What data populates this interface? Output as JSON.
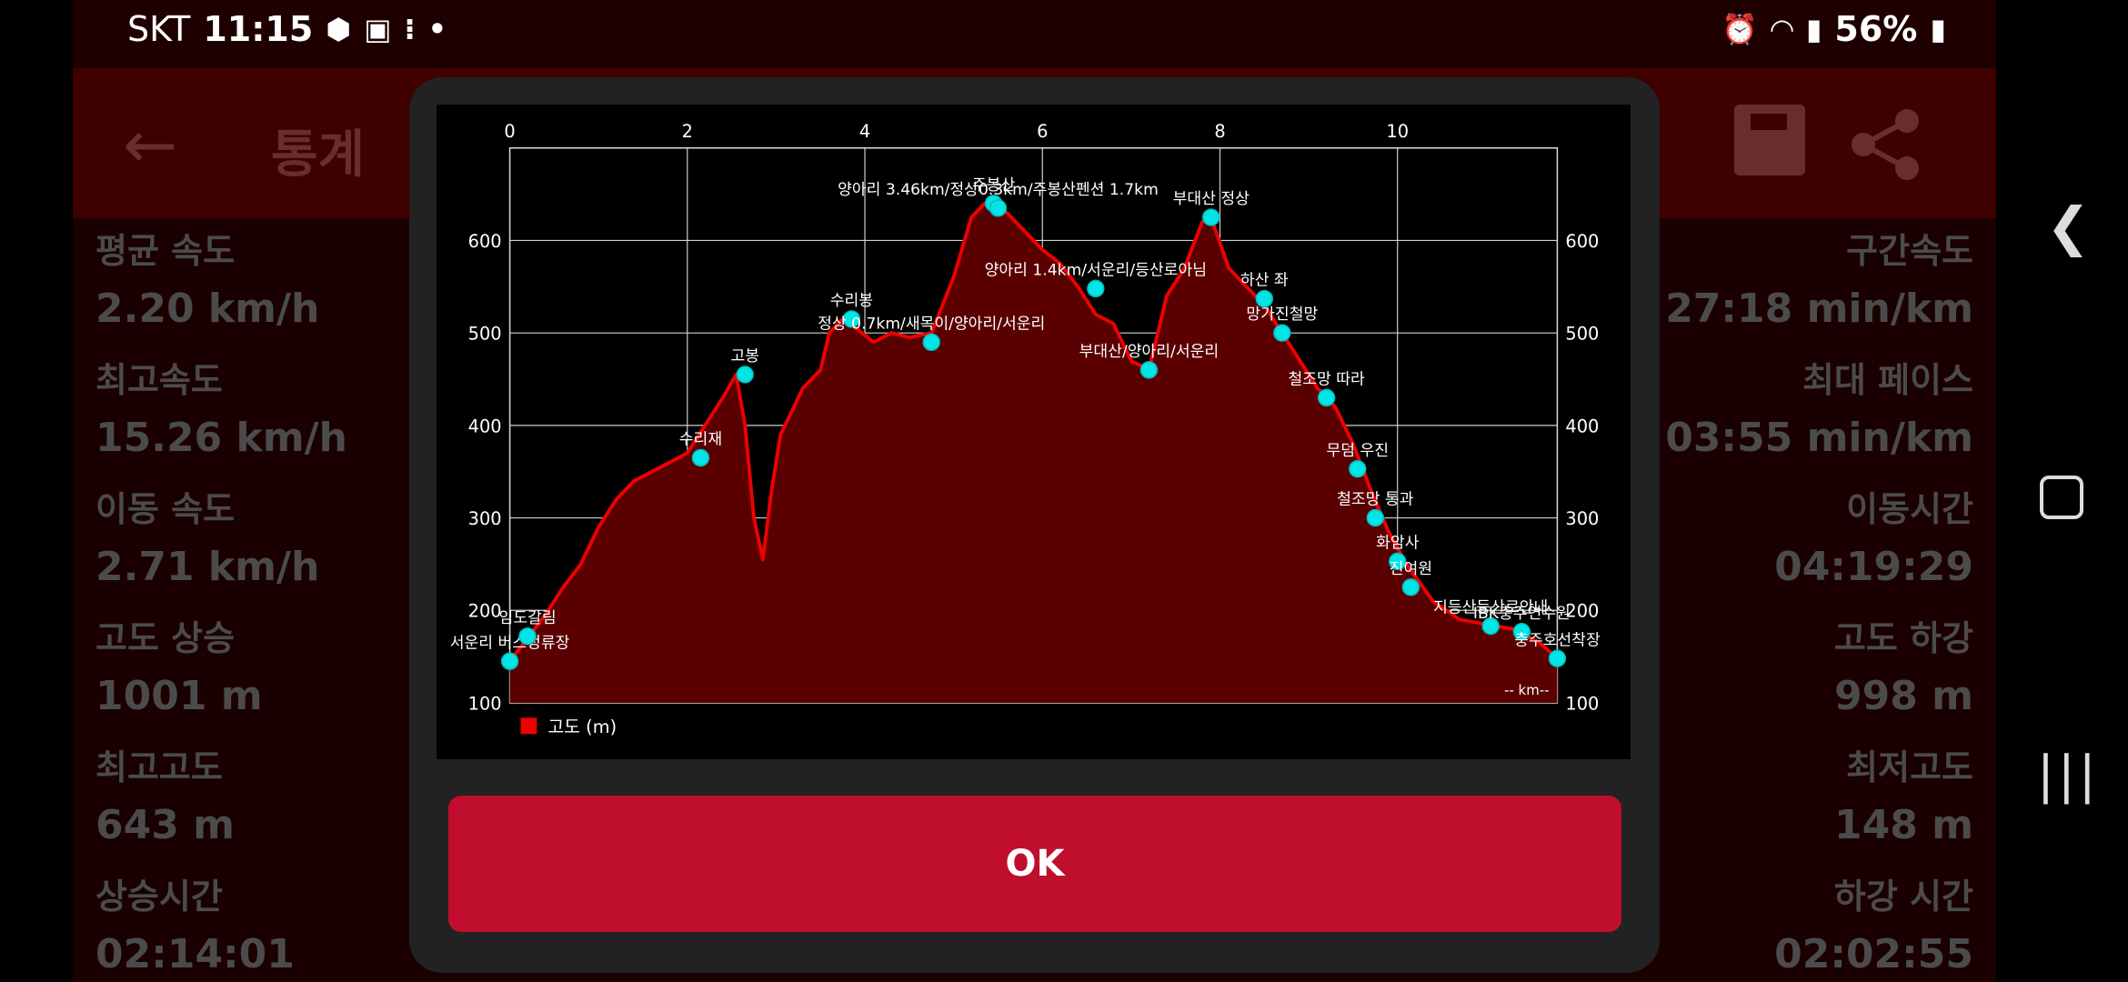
{
  "status_bar": {
    "carrier": "SKT",
    "time": "11:15",
    "battery": "56%",
    "icons": [
      "app-icon",
      "image-icon",
      "steps-icon",
      "dot-icon",
      "alarm-icon",
      "wifi-icon",
      "signal-icon",
      "battery-icon"
    ]
  },
  "app_bar": {
    "title": "통계"
  },
  "stats_left": [
    {
      "label": "평균 속도",
      "value": "2.20 km/h"
    },
    {
      "label": "최고속도",
      "value": "15.26 km/h"
    },
    {
      "label": "이동 속도",
      "value": "2.71 km/h"
    },
    {
      "label": "고도 상승",
      "value": "1001 m"
    },
    {
      "label": "최고고도",
      "value": "643 m"
    },
    {
      "label": "상승시간",
      "value": "02:14:01"
    }
  ],
  "stats_right": [
    {
      "label": "구간속도",
      "value": "27:18 min/km"
    },
    {
      "label": "최대 페이스",
      "value": "03:55 min/km"
    },
    {
      "label": "이동시간",
      "value": "04:19:29"
    },
    {
      "label": "고도 하강",
      "value": "998 m"
    },
    {
      "label": "최저고도",
      "value": "148 m"
    },
    {
      "label": "하강 시간",
      "value": "02:02:55"
    }
  ],
  "dialog": {
    "ok_label": "OK"
  },
  "chart_data": {
    "type": "area",
    "legend": "고도 (m)",
    "legend_position": "bottom-left",
    "x_unit_label": "-- km--",
    "grid": true,
    "xlim": [
      0,
      11.8
    ],
    "ylim": [
      100,
      700
    ],
    "x_ticks": [
      0,
      2,
      4,
      6,
      8,
      10
    ],
    "y_ticks": [
      100,
      200,
      300,
      400,
      500,
      600
    ],
    "series": [
      {
        "color": "#ee0000",
        "x": [
          0,
          0.2,
          0.4,
          0.6,
          0.8,
          1.0,
          1.2,
          1.4,
          1.6,
          1.8,
          2.0,
          2.2,
          2.4,
          2.55,
          2.65,
          2.75,
          2.85,
          2.95,
          3.05,
          3.15,
          3.3,
          3.5,
          3.6,
          3.75,
          3.9,
          4.1,
          4.3,
          4.5,
          4.75,
          5.0,
          5.2,
          5.35,
          5.45,
          5.6,
          5.8,
          6.0,
          6.2,
          6.4,
          6.6,
          6.8,
          7.0,
          7.2,
          7.4,
          7.6,
          7.8,
          7.9,
          8.1,
          8.3,
          8.5,
          8.7,
          8.9,
          9.1,
          9.3,
          9.5,
          9.7,
          9.9,
          10.1,
          10.4,
          10.7,
          11.0,
          11.3,
          11.6,
          11.8
        ],
        "y": [
          145,
          170,
          195,
          225,
          250,
          290,
          320,
          340,
          350,
          360,
          370,
          400,
          430,
          455,
          400,
          300,
          255,
          330,
          390,
          410,
          440,
          460,
          500,
          515,
          505,
          490,
          500,
          495,
          500,
          560,
          625,
          640,
          635,
          630,
          610,
          590,
          575,
          550,
          520,
          510,
          470,
          460,
          540,
          570,
          620,
          625,
          570,
          550,
          530,
          500,
          470,
          440,
          420,
          380,
          330,
          285,
          250,
          210,
          190,
          185,
          180,
          165,
          148
        ]
      }
    ],
    "waypoints": [
      {
        "name": "서운리 버스정류장",
        "x": 0,
        "y": 145
      },
      {
        "name": "임도갈림",
        "x": 0.2,
        "y": 172
      },
      {
        "name": "수리재",
        "x": 2.15,
        "y": 365
      },
      {
        "name": "고봉",
        "x": 2.65,
        "y": 455
      },
      {
        "name": "수리봉",
        "x": 3.85,
        "y": 515
      },
      {
        "name": "정상 0.7km/새목이/양아리/서운리",
        "x": 4.75,
        "y": 490
      },
      {
        "name": "주봉산",
        "x": 5.45,
        "y": 640
      },
      {
        "name": "양아리 3.46km/정상0.3km/주봉산펜션 1.7km",
        "x": 5.5,
        "y": 635
      },
      {
        "name": "양아리 1.4km/서운리/등산로아님",
        "x": 6.6,
        "y": 548
      },
      {
        "name": "부대산/양아리/서운리",
        "x": 7.2,
        "y": 460
      },
      {
        "name": "부대산 정상",
        "x": 7.9,
        "y": 625
      },
      {
        "name": "하산 좌",
        "x": 8.5,
        "y": 537
      },
      {
        "name": "망가진철망",
        "x": 8.7,
        "y": 500
      },
      {
        "name": "철조망 따라",
        "x": 9.2,
        "y": 430
      },
      {
        "name": "무덤 우진",
        "x": 9.55,
        "y": 353
      },
      {
        "name": "철조망 통과",
        "x": 9.75,
        "y": 300
      },
      {
        "name": "화암사",
        "x": 10.0,
        "y": 253
      },
      {
        "name": "진여원",
        "x": 10.15,
        "y": 225
      },
      {
        "name": "지등산등산로안내",
        "x": 11.05,
        "y": 183
      },
      {
        "name": "IBK충주연수원",
        "x": 11.4,
        "y": 177
      },
      {
        "name": "충주호선착장",
        "x": 11.8,
        "y": 148
      }
    ]
  }
}
